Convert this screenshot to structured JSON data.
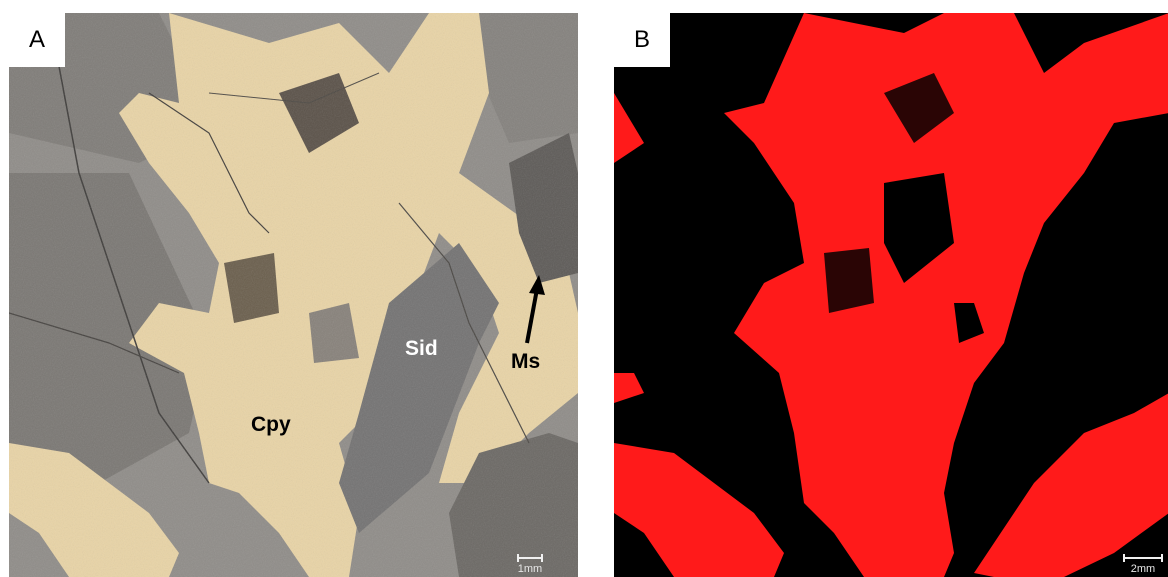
{
  "panels": [
    {
      "tag": "A",
      "scale_label": "1mm",
      "labels": {
        "sid": "Sid",
        "cpy": "Cpy",
        "ms": "Ms"
      }
    },
    {
      "tag": "B",
      "scale_label": "2mm"
    }
  ],
  "colors": {
    "chalcopyrite": "#e9d4a6",
    "siderite_gangue": "#8f8c88",
    "classified_mineral": "#ff1a1a",
    "background_mask": "#000000"
  }
}
